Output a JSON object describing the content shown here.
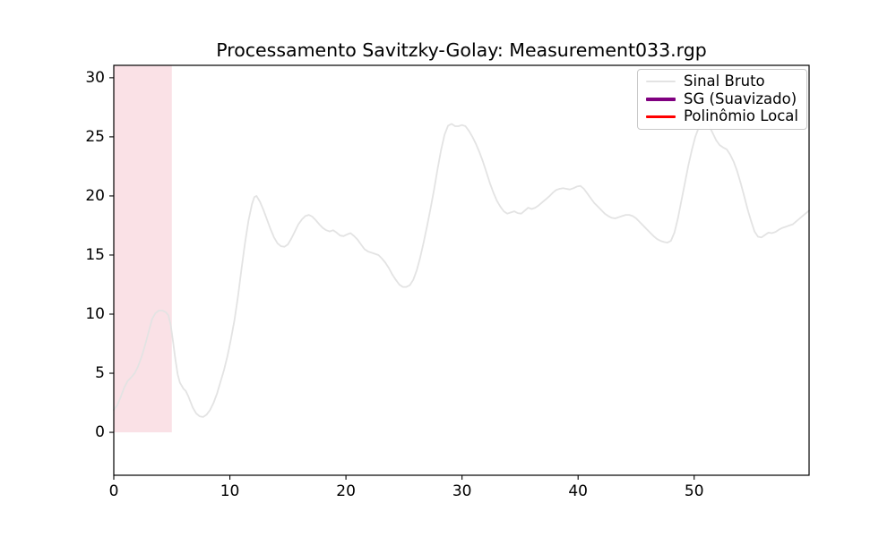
{
  "figure": {
    "background": "#ffffff"
  },
  "chart_data": {
    "type": "line",
    "title": "Processamento Savitzky-Golay: Measurement033.rgp",
    "xlabel": "",
    "ylabel": "",
    "xlim": [
      0,
      59.9
    ],
    "ylim": [
      -3.63,
      31.05
    ],
    "x_ticks": [
      0,
      10,
      20,
      30,
      40,
      50
    ],
    "y_ticks": [
      0,
      5,
      10,
      15,
      20,
      25,
      30
    ],
    "grid": false,
    "legend": {
      "position": "upper right",
      "frame": true
    },
    "annotations": [
      {
        "kind": "vspan",
        "x0": 0,
        "x1": 5,
        "y0": 0,
        "color": "#dc143c",
        "alpha": 0.13
      }
    ],
    "series": [
      {
        "name": "Sinal Bruto",
        "color": "#e3e3e3",
        "linewidth": 1.8,
        "points": [
          [
            0,
            1.9
          ],
          [
            0.3,
            2.3
          ],
          [
            0.6,
            3.0
          ],
          [
            0.9,
            3.8
          ],
          [
            1.2,
            4.35
          ],
          [
            1.5,
            4.65
          ],
          [
            1.8,
            5.0
          ],
          [
            2.1,
            5.6
          ],
          [
            2.4,
            6.4
          ],
          [
            2.7,
            7.4
          ],
          [
            3.0,
            8.5
          ],
          [
            3.3,
            9.6
          ],
          [
            3.6,
            10.1
          ],
          [
            3.9,
            10.3
          ],
          [
            4.2,
            10.3
          ],
          [
            4.5,
            10.15
          ],
          [
            4.7,
            9.9
          ],
          [
            4.9,
            9.1
          ],
          [
            5.1,
            7.7
          ],
          [
            5.3,
            6.2
          ],
          [
            5.5,
            4.9
          ],
          [
            5.7,
            4.2
          ],
          [
            6.0,
            3.7
          ],
          [
            6.2,
            3.5
          ],
          [
            6.4,
            3.1
          ],
          [
            6.6,
            2.6
          ],
          [
            6.8,
            2.1
          ],
          [
            7.1,
            1.6
          ],
          [
            7.4,
            1.35
          ],
          [
            7.7,
            1.3
          ],
          [
            8.0,
            1.5
          ],
          [
            8.3,
            1.9
          ],
          [
            8.6,
            2.5
          ],
          [
            8.9,
            3.3
          ],
          [
            9.2,
            4.3
          ],
          [
            9.5,
            5.3
          ],
          [
            9.8,
            6.5
          ],
          [
            10.1,
            7.9
          ],
          [
            10.4,
            9.5
          ],
          [
            10.7,
            11.5
          ],
          [
            11.0,
            13.8
          ],
          [
            11.3,
            16.0
          ],
          [
            11.6,
            17.9
          ],
          [
            11.9,
            19.3
          ],
          [
            12.1,
            19.9
          ],
          [
            12.3,
            20.0
          ],
          [
            12.6,
            19.5
          ],
          [
            12.9,
            18.8
          ],
          [
            13.2,
            18.0
          ],
          [
            13.5,
            17.2
          ],
          [
            13.8,
            16.5
          ],
          [
            14.1,
            16.0
          ],
          [
            14.4,
            15.75
          ],
          [
            14.7,
            15.7
          ],
          [
            15.0,
            15.9
          ],
          [
            15.3,
            16.4
          ],
          [
            15.6,
            17.0
          ],
          [
            15.9,
            17.6
          ],
          [
            16.2,
            18.0
          ],
          [
            16.5,
            18.3
          ],
          [
            16.8,
            18.4
          ],
          [
            17.1,
            18.25
          ],
          [
            17.4,
            17.95
          ],
          [
            17.7,
            17.6
          ],
          [
            18.0,
            17.3
          ],
          [
            18.3,
            17.1
          ],
          [
            18.6,
            17.0
          ],
          [
            18.9,
            17.1
          ],
          [
            19.2,
            16.9
          ],
          [
            19.5,
            16.65
          ],
          [
            19.8,
            16.6
          ],
          [
            20.1,
            16.75
          ],
          [
            20.4,
            16.85
          ],
          [
            20.7,
            16.6
          ],
          [
            21.0,
            16.3
          ],
          [
            21.3,
            15.9
          ],
          [
            21.6,
            15.5
          ],
          [
            21.9,
            15.3
          ],
          [
            22.2,
            15.2
          ],
          [
            22.5,
            15.1
          ],
          [
            22.8,
            15.0
          ],
          [
            23.1,
            14.7
          ],
          [
            23.4,
            14.35
          ],
          [
            23.7,
            13.9
          ],
          [
            24.0,
            13.35
          ],
          [
            24.3,
            12.9
          ],
          [
            24.6,
            12.5
          ],
          [
            24.9,
            12.3
          ],
          [
            25.2,
            12.3
          ],
          [
            25.5,
            12.45
          ],
          [
            25.8,
            12.9
          ],
          [
            26.1,
            13.7
          ],
          [
            26.4,
            14.8
          ],
          [
            26.7,
            16.1
          ],
          [
            27.0,
            17.5
          ],
          [
            27.3,
            19.0
          ],
          [
            27.6,
            20.6
          ],
          [
            27.9,
            22.3
          ],
          [
            28.2,
            23.9
          ],
          [
            28.5,
            25.2
          ],
          [
            28.8,
            25.95
          ],
          [
            29.1,
            26.1
          ],
          [
            29.4,
            25.9
          ],
          [
            29.7,
            25.9
          ],
          [
            30.0,
            26.0
          ],
          [
            30.3,
            25.9
          ],
          [
            30.6,
            25.5
          ],
          [
            30.9,
            25.0
          ],
          [
            31.2,
            24.4
          ],
          [
            31.5,
            23.7
          ],
          [
            31.8,
            22.9
          ],
          [
            32.1,
            22.0
          ],
          [
            32.4,
            21.1
          ],
          [
            32.7,
            20.3
          ],
          [
            33.0,
            19.6
          ],
          [
            33.3,
            19.1
          ],
          [
            33.6,
            18.7
          ],
          [
            33.9,
            18.5
          ],
          [
            34.2,
            18.6
          ],
          [
            34.5,
            18.7
          ],
          [
            34.8,
            18.55
          ],
          [
            35.1,
            18.5
          ],
          [
            35.4,
            18.75
          ],
          [
            35.7,
            19.0
          ],
          [
            36.0,
            18.9
          ],
          [
            36.3,
            19.0
          ],
          [
            36.6,
            19.2
          ],
          [
            36.9,
            19.45
          ],
          [
            37.2,
            19.7
          ],
          [
            37.5,
            19.95
          ],
          [
            37.8,
            20.25
          ],
          [
            38.1,
            20.5
          ],
          [
            38.4,
            20.6
          ],
          [
            38.7,
            20.65
          ],
          [
            39.0,
            20.6
          ],
          [
            39.3,
            20.55
          ],
          [
            39.6,
            20.65
          ],
          [
            39.9,
            20.8
          ],
          [
            40.2,
            20.85
          ],
          [
            40.5,
            20.6
          ],
          [
            40.8,
            20.2
          ],
          [
            41.1,
            19.8
          ],
          [
            41.4,
            19.4
          ],
          [
            41.7,
            19.1
          ],
          [
            42.0,
            18.8
          ],
          [
            42.3,
            18.5
          ],
          [
            42.6,
            18.3
          ],
          [
            42.9,
            18.15
          ],
          [
            43.2,
            18.1
          ],
          [
            43.5,
            18.2
          ],
          [
            43.8,
            18.3
          ],
          [
            44.1,
            18.4
          ],
          [
            44.4,
            18.4
          ],
          [
            44.7,
            18.3
          ],
          [
            45.0,
            18.1
          ],
          [
            45.3,
            17.8
          ],
          [
            45.6,
            17.5
          ],
          [
            45.9,
            17.2
          ],
          [
            46.2,
            16.9
          ],
          [
            46.5,
            16.6
          ],
          [
            46.8,
            16.35
          ],
          [
            47.1,
            16.2
          ],
          [
            47.4,
            16.1
          ],
          [
            47.7,
            16.05
          ],
          [
            48.0,
            16.2
          ],
          [
            48.3,
            16.9
          ],
          [
            48.6,
            18.1
          ],
          [
            48.9,
            19.6
          ],
          [
            49.2,
            21.1
          ],
          [
            49.5,
            22.6
          ],
          [
            49.8,
            23.9
          ],
          [
            50.1,
            25.0
          ],
          [
            50.4,
            25.8
          ],
          [
            50.7,
            26.2
          ],
          [
            51.0,
            26.25
          ],
          [
            51.3,
            25.9
          ],
          [
            51.6,
            25.3
          ],
          [
            51.9,
            24.7
          ],
          [
            52.2,
            24.3
          ],
          [
            52.5,
            24.1
          ],
          [
            52.8,
            23.95
          ],
          [
            53.1,
            23.5
          ],
          [
            53.4,
            22.9
          ],
          [
            53.7,
            22.1
          ],
          [
            54.0,
            21.1
          ],
          [
            54.3,
            20.0
          ],
          [
            54.6,
            18.9
          ],
          [
            54.9,
            17.9
          ],
          [
            55.2,
            17.0
          ],
          [
            55.5,
            16.55
          ],
          [
            55.8,
            16.5
          ],
          [
            56.1,
            16.7
          ],
          [
            56.4,
            16.9
          ],
          [
            56.7,
            16.85
          ],
          [
            57.0,
            16.95
          ],
          [
            57.3,
            17.15
          ],
          [
            57.6,
            17.3
          ],
          [
            57.9,
            17.4
          ],
          [
            58.2,
            17.5
          ],
          [
            58.5,
            17.6
          ],
          [
            58.8,
            17.85
          ],
          [
            59.1,
            18.1
          ],
          [
            59.4,
            18.35
          ],
          [
            59.7,
            18.6
          ],
          [
            59.9,
            18.75
          ]
        ]
      },
      {
        "name": "SG (Suavizado)",
        "color": "#800080",
        "linewidth": 3.5,
        "points": []
      },
      {
        "name": "Polinômio Local",
        "color": "#ff0000",
        "linewidth": 2.5,
        "points": []
      }
    ]
  }
}
